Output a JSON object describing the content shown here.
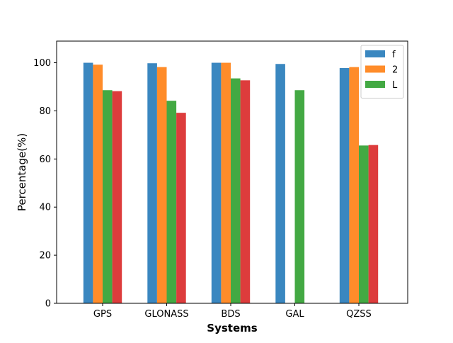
{
  "chart_data": {
    "type": "bar",
    "title": "",
    "xlabel": "Systems",
    "ylabel": "Percentage(%)",
    "categories": [
      "GPS",
      "GLONASS",
      "BDS",
      "GAL",
      "QZSS"
    ],
    "ylim": [
      0,
      109
    ],
    "yticks": [
      0,
      20,
      40,
      60,
      80,
      100
    ],
    "grid": false,
    "legend_position": "top-right",
    "series": [
      {
        "name": "f",
        "color": "#3a87c0",
        "values": [
          100,
          99.8,
          100,
          99.5,
          97.8
        ]
      },
      {
        "name": "2",
        "color": "#ff8c2a",
        "values": [
          99.2,
          98.2,
          100,
          null,
          98.2
        ]
      },
      {
        "name": "L",
        "color": "#43a943",
        "values": [
          88.6,
          84.2,
          93.5,
          88.6,
          65.6
        ]
      },
      {
        "name": "",
        "color": "#dd3c3c",
        "values": [
          88.2,
          79.2,
          92.7,
          null,
          65.8
        ]
      }
    ]
  }
}
